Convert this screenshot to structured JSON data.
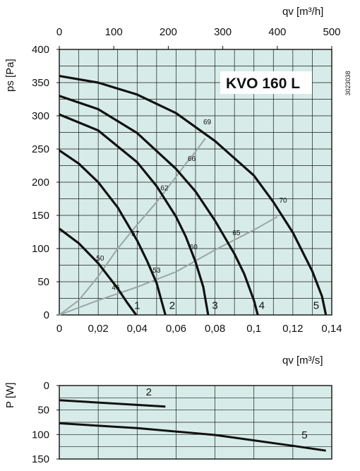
{
  "chart_data": [
    {
      "type": "line",
      "model_label": "KVO 160 L",
      "doc_code": "3023038",
      "xlabel": "qv [m³/s]",
      "x2label": "qv [m³/h]",
      "ylabel": "ps [Pa]",
      "xlim": [
        0,
        0.14
      ],
      "x2lim": [
        0,
        500
      ],
      "ylim": [
        0,
        400
      ],
      "x_ticks": [
        "0",
        "0,02",
        "0,04",
        "0,06",
        "0,08",
        "0,1",
        "0,12",
        "0,14"
      ],
      "x2_ticks": [
        "0",
        "100",
        "200",
        "300",
        "400",
        "500"
      ],
      "y_ticks": [
        "0",
        "50",
        "100",
        "150",
        "200",
        "250",
        "300",
        "350",
        "400"
      ],
      "grid": true,
      "background": "#d7ece8",
      "fan_curve_color": "#111111",
      "efficiency_curve_color": "#9aa6a4",
      "series": [
        {
          "name": "1",
          "x": [
            0,
            0.01,
            0.02,
            0.03,
            0.035,
            0.0395
          ],
          "y": [
            130,
            108,
            78,
            40,
            18,
            0
          ]
        },
        {
          "name": "2",
          "x": [
            0,
            0.01,
            0.02,
            0.03,
            0.04,
            0.045,
            0.05,
            0.0545
          ],
          "y": [
            248,
            228,
            200,
            162,
            112,
            82,
            48,
            0
          ]
        },
        {
          "name": "3",
          "x": [
            0,
            0.02,
            0.04,
            0.05,
            0.06,
            0.065,
            0.07,
            0.074,
            0.0765
          ],
          "y": [
            302,
            278,
            230,
            194,
            148,
            118,
            80,
            42,
            0
          ]
        },
        {
          "name": "4",
          "x": [
            0,
            0.02,
            0.04,
            0.06,
            0.07,
            0.08,
            0.09,
            0.095,
            0.1,
            0.102
          ],
          "y": [
            330,
            310,
            274,
            220,
            186,
            142,
            92,
            62,
            22,
            0
          ]
        },
        {
          "name": "5",
          "x": [
            0,
            0.02,
            0.04,
            0.06,
            0.08,
            0.1,
            0.11,
            0.12,
            0.13,
            0.135,
            0.137
          ],
          "y": [
            360,
            350,
            332,
            304,
            262,
            210,
            170,
            124,
            66,
            28,
            0
          ]
        }
      ],
      "efficiency_lines": [
        {
          "x": [
            0,
            0.01,
            0.02,
            0.03,
            0.04,
            0.05,
            0.06,
            0.065,
            0.07,
            0.075
          ],
          "y": [
            0,
            22,
            58,
            100,
            136,
            170,
            208,
            228,
            246,
            266
          ]
        },
        {
          "x": [
            0,
            0.02,
            0.04,
            0.06,
            0.08,
            0.1,
            0.112
          ],
          "y": [
            0,
            22,
            42,
            65,
            98,
            128,
            148
          ]
        }
      ],
      "efficiency_labels": [
        {
          "text": "46",
          "x": 0.029,
          "y": 38
        },
        {
          "text": "50",
          "x": 0.021,
          "y": 82
        },
        {
          "text": "53",
          "x": 0.05,
          "y": 64
        },
        {
          "text": "57",
          "x": 0.039,
          "y": 119
        },
        {
          "text": "60",
          "x": 0.069,
          "y": 99
        },
        {
          "text": "62",
          "x": 0.054,
          "y": 188
        },
        {
          "text": "65",
          "x": 0.091,
          "y": 120
        },
        {
          "text": "66",
          "x": 0.068,
          "y": 232
        },
        {
          "text": "69",
          "x": 0.076,
          "y": 287
        },
        {
          "text": "70",
          "x": 0.115,
          "y": 169
        }
      ],
      "curve_end_labels": [
        {
          "text": "1",
          "x": 0.04,
          "y": 9
        },
        {
          "text": "2",
          "x": 0.058,
          "y": 9
        },
        {
          "text": "3",
          "x": 0.08,
          "y": 9
        },
        {
          "text": "4",
          "x": 0.104,
          "y": 9
        },
        {
          "text": "5",
          "x": 0.132,
          "y": 9
        }
      ]
    },
    {
      "type": "line",
      "ylabel": "P [W]",
      "xlim": [
        0,
        0.14
      ],
      "ylim": [
        0,
        150
      ],
      "y_inverted": true,
      "y_ticks": [
        "0",
        "50",
        "100",
        "150"
      ],
      "grid": true,
      "series": [
        {
          "name": "2",
          "x": [
            0,
            0.0545
          ],
          "y": [
            30,
            43
          ]
        },
        {
          "name": "5",
          "x": [
            0,
            0.04,
            0.08,
            0.12,
            0.137
          ],
          "y": [
            77,
            87,
            101,
            123,
            133
          ]
        }
      ],
      "series_labels": [
        {
          "text": "2",
          "x": 0.046,
          "y": 20
        },
        {
          "text": "5",
          "x": 0.126,
          "y": 108
        }
      ]
    }
  ]
}
